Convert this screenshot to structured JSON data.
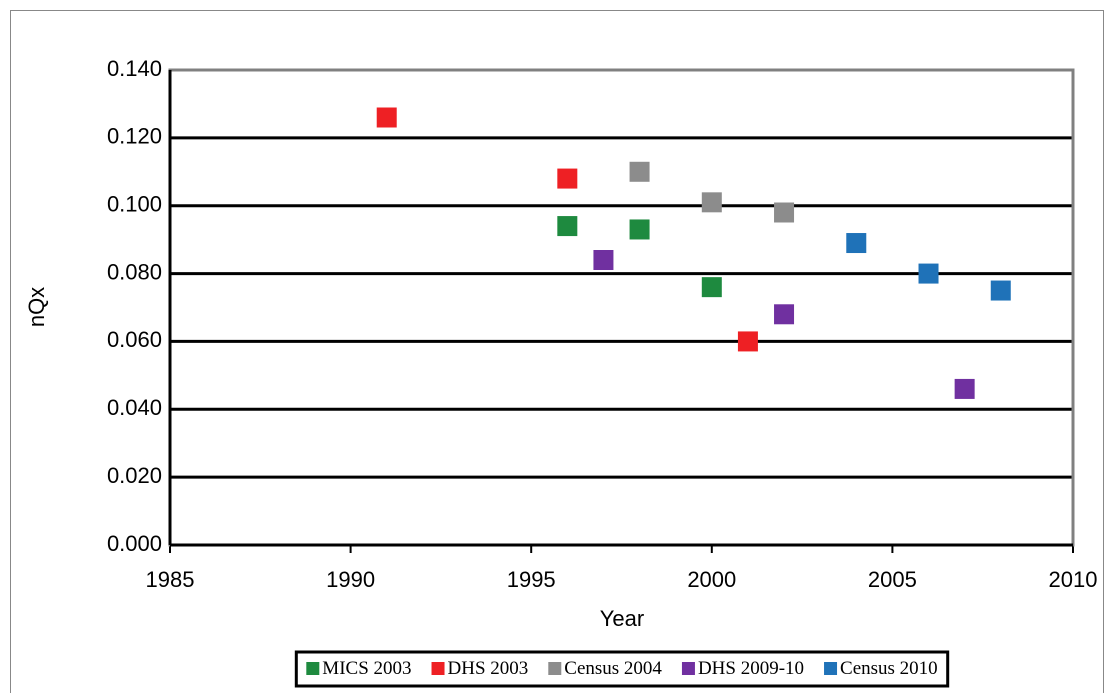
{
  "chart_data": {
    "type": "scatter",
    "x_label": "Year",
    "y_label": "nQx",
    "xlim": [
      1985,
      2010
    ],
    "xticks": [
      1985,
      1990,
      1995,
      2000,
      2005,
      2010
    ],
    "ylim": [
      0,
      0.14
    ],
    "yticks": [
      {
        "value": 0,
        "label": "0.000"
      },
      {
        "value": 0.02,
        "label": "0.020"
      },
      {
        "value": 0.04,
        "label": "0.040"
      },
      {
        "value": 0.06,
        "label": "0.060"
      },
      {
        "value": 0.08,
        "label": "0.080"
      },
      {
        "value": 0.1,
        "label": "0.100"
      },
      {
        "value": 0.12,
        "label": "0.120"
      },
      {
        "value": 0.14,
        "label": "0.140"
      }
    ],
    "grid": true,
    "legend": "bottom",
    "series": [
      {
        "name": "MICS 2003",
        "color": "#1e8a3f",
        "x": [
          1996,
          1998,
          2000
        ],
        "values": [
          0.094,
          0.093,
          0.076
        ]
      },
      {
        "name": "DHS 2003",
        "color": "#ee2024",
        "x": [
          1991,
          1996,
          2001
        ],
        "values": [
          0.126,
          0.108,
          0.06
        ]
      },
      {
        "name": "Census 2004",
        "color": "#8c8c8c",
        "x": [
          1998,
          2000,
          2002
        ],
        "values": [
          0.11,
          0.101,
          0.098
        ]
      },
      {
        "name": "DHS 2009-10",
        "color": "#7030a0",
        "x": [
          1997,
          2002,
          2007
        ],
        "values": [
          0.084,
          0.068,
          0.046
        ]
      },
      {
        "name": "Census 2010",
        "color": "#1f72b8",
        "x": [
          2004,
          2006,
          2008
        ],
        "values": [
          0.089,
          0.08,
          0.075
        ]
      }
    ]
  }
}
